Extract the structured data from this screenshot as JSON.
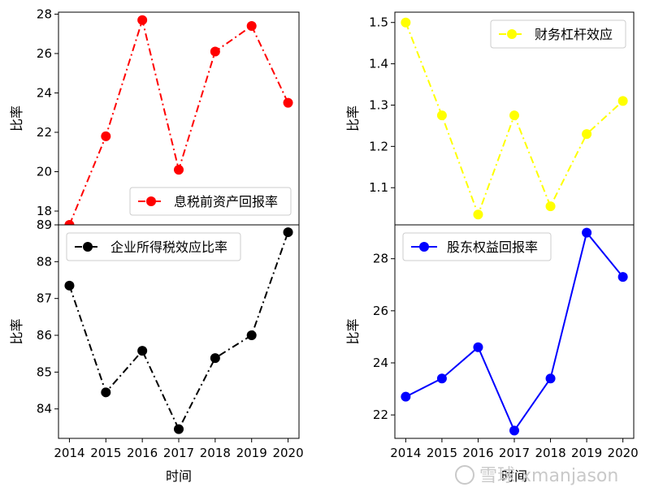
{
  "chart_data": [
    {
      "type": "line",
      "x": [
        2014,
        2015,
        2016,
        2017,
        2018,
        2019,
        2020
      ],
      "series": [
        {
          "name": "息税前资产回报率",
          "values": [
            17.3,
            21.8,
            27.7,
            20.1,
            26.1,
            27.4,
            23.5
          ],
          "color": "#ff0000",
          "line_style": "dash-dot",
          "marker": "circle"
        }
      ],
      "xlabel": "",
      "ylabel": "比率",
      "yticks": [
        18,
        20,
        22,
        24,
        26,
        28
      ],
      "ylim": [
        17.3,
        28.1
      ],
      "xticks_visible": false,
      "legend": "lower-right"
    },
    {
      "type": "line",
      "x": [
        2014,
        2015,
        2016,
        2017,
        2018,
        2019,
        2020
      ],
      "series": [
        {
          "name": "财务杠杆效应",
          "values": [
            1.5,
            1.275,
            1.035,
            1.275,
            1.055,
            1.23,
            1.31
          ],
          "color": "#ffff00",
          "line_style": "dash-dot",
          "marker": "circle"
        }
      ],
      "xlabel": "",
      "ylabel": "比率",
      "yticks": [
        1.1,
        1.2,
        1.3,
        1.4,
        1.5
      ],
      "ylim": [
        1.01,
        1.525
      ],
      "xticks_visible": false,
      "legend": "upper-right"
    },
    {
      "type": "line",
      "x": [
        2014,
        2015,
        2016,
        2017,
        2018,
        2019,
        2020
      ],
      "series": [
        {
          "name": "企业所得税效应比率",
          "values": [
            87.35,
            84.45,
            85.58,
            83.45,
            85.38,
            86.0,
            88.8
          ],
          "color": "#000000",
          "line_style": "dash-dot",
          "marker": "circle"
        }
      ],
      "xlabel": "时间",
      "ylabel": "比率",
      "yticks": [
        84,
        85,
        86,
        87,
        88,
        89
      ],
      "ylim": [
        83.2,
        89.0
      ],
      "legend": "upper-left"
    },
    {
      "type": "line",
      "x": [
        2014,
        2015,
        2016,
        2017,
        2018,
        2019,
        2020
      ],
      "series": [
        {
          "name": "股东权益回报率",
          "values": [
            22.7,
            23.4,
            24.6,
            21.4,
            23.4,
            29.0,
            27.3
          ],
          "color": "#0000ff",
          "line_style": "solid",
          "marker": "circle"
        }
      ],
      "xlabel": "时间",
      "ylabel": "比率",
      "yticks": [
        22,
        24,
        26,
        28
      ],
      "ylim": [
        21.1,
        29.3
      ],
      "legend": "upper-left"
    }
  ],
  "axis_tick_labels": [
    "2014",
    "2015",
    "2016",
    "2017",
    "2018",
    "2019",
    "2020"
  ],
  "watermark": "雪球 xmanjason"
}
